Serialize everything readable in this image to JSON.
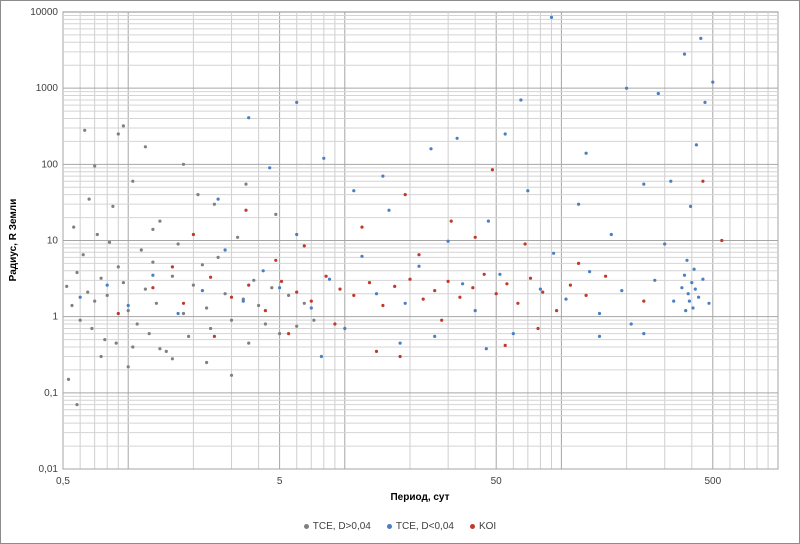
{
  "chart_data": {
    "type": "scatter",
    "xlabel": "Период, сут",
    "ylabel": "Радиус, R Земли",
    "x_scale": "log",
    "y_scale": "log",
    "xlim": [
      0.5,
      1000
    ],
    "ylim": [
      0.01,
      10000
    ],
    "x_ticks": [
      0.5,
      5,
      50,
      500
    ],
    "x_tick_labels": [
      "0,5",
      "5",
      "50",
      "500"
    ],
    "y_ticks": [
      0.01,
      0.1,
      1,
      10,
      100,
      1000,
      10000
    ],
    "y_tick_labels": [
      "0,01",
      "0,1",
      "1",
      "10",
      "100",
      "1000",
      "10000"
    ],
    "grid": true,
    "legend_position": "bottom",
    "series": [
      {
        "name": "TCE, D>0,04",
        "color": "#808080",
        "points": [
          [
            0.52,
            2.5
          ],
          [
            0.55,
            1.4
          ],
          [
            0.58,
            3.8
          ],
          [
            0.6,
            0.9
          ],
          [
            0.62,
            6.5
          ],
          [
            0.65,
            2.1
          ],
          [
            0.68,
            0.7
          ],
          [
            0.7,
            1.6
          ],
          [
            0.72,
            12
          ],
          [
            0.75,
            3.2
          ],
          [
            0.78,
            0.5
          ],
          [
            0.8,
            1.9
          ],
          [
            0.85,
            28
          ],
          [
            0.88,
            0.45
          ],
          [
            0.9,
            4.5
          ],
          [
            0.95,
            2.8
          ],
          [
            1.0,
            1.2
          ],
          [
            1.05,
            60
          ],
          [
            1.1,
            0.8
          ],
          [
            1.15,
            7.5
          ],
          [
            1.2,
            2.3
          ],
          [
            1.25,
            0.6
          ],
          [
            1.3,
            5.2
          ],
          [
            1.35,
            1.5
          ],
          [
            1.4,
            18
          ],
          [
            1.5,
            0.35
          ],
          [
            1.6,
            3.4
          ],
          [
            1.7,
            9.0
          ],
          [
            1.8,
            1.1
          ],
          [
            1.9,
            0.55
          ],
          [
            2.0,
            2.6
          ],
          [
            2.1,
            40
          ],
          [
            2.2,
            4.8
          ],
          [
            2.3,
            1.3
          ],
          [
            2.4,
            0.7
          ],
          [
            2.6,
            6.0
          ],
          [
            2.8,
            2.0
          ],
          [
            3.0,
            0.9
          ],
          [
            3.2,
            11
          ],
          [
            3.4,
            1.7
          ],
          [
            3.6,
            0.45
          ],
          [
            3.8,
            3.0
          ],
          [
            4.0,
            1.4
          ],
          [
            4.3,
            0.8
          ],
          [
            4.6,
            2.4
          ],
          [
            5.0,
            0.6
          ],
          [
            5.5,
            1.9
          ],
          [
            6.0,
            0.75
          ],
          [
            6.5,
            1.5
          ],
          [
            7.2,
            0.9
          ],
          [
            0.53,
            0.15
          ],
          [
            0.58,
            0.07
          ],
          [
            0.63,
            280
          ],
          [
            0.7,
            95
          ],
          [
            0.9,
            250
          ],
          [
            0.95,
            320
          ],
          [
            1.2,
            170
          ],
          [
            0.75,
            0.3
          ],
          [
            1.0,
            0.22
          ],
          [
            1.4,
            0.38
          ],
          [
            1.8,
            100
          ],
          [
            2.3,
            0.25
          ],
          [
            3.0,
            0.17
          ],
          [
            0.56,
            15
          ],
          [
            0.66,
            35
          ],
          [
            0.82,
            9.5
          ],
          [
            1.05,
            0.4
          ],
          [
            1.3,
            14
          ],
          [
            1.6,
            0.28
          ],
          [
            2.5,
            30
          ],
          [
            3.5,
            55
          ],
          [
            4.8,
            22
          ]
        ]
      },
      {
        "name": "TCE, D<0,04",
        "color": "#4a7fc1",
        "points": [
          [
            0.6,
            1.8
          ],
          [
            0.8,
            2.6
          ],
          [
            1.0,
            1.4
          ],
          [
            1.3,
            3.5
          ],
          [
            1.7,
            1.1
          ],
          [
            2.2,
            2.2
          ],
          [
            2.8,
            7.5
          ],
          [
            3.4,
            1.6
          ],
          [
            4.2,
            4.0
          ],
          [
            5.0,
            2.4
          ],
          [
            6.0,
            12
          ],
          [
            7.0,
            1.3
          ],
          [
            8.5,
            3.1
          ],
          [
            10,
            0.7
          ],
          [
            12,
            6.2
          ],
          [
            14,
            2.0
          ],
          [
            16,
            25
          ],
          [
            19,
            1.5
          ],
          [
            22,
            4.6
          ],
          [
            26,
            0.55
          ],
          [
            30,
            9.8
          ],
          [
            35,
            2.7
          ],
          [
            40,
            1.2
          ],
          [
            46,
            18
          ],
          [
            52,
            3.6
          ],
          [
            60,
            0.6
          ],
          [
            70,
            45
          ],
          [
            80,
            2.3
          ],
          [
            92,
            6.8
          ],
          [
            105,
            1.7
          ],
          [
            120,
            30
          ],
          [
            135,
            3.9
          ],
          [
            150,
            1.1
          ],
          [
            170,
            12
          ],
          [
            190,
            2.2
          ],
          [
            210,
            0.8
          ],
          [
            240,
            55
          ],
          [
            270,
            3.0
          ],
          [
            300,
            9.0
          ],
          [
            330,
            1.6
          ],
          [
            360,
            2.4
          ],
          [
            370,
            3.5
          ],
          [
            375,
            1.2
          ],
          [
            380,
            5.5
          ],
          [
            385,
            2.0
          ],
          [
            390,
            1.6
          ],
          [
            395,
            28
          ],
          [
            400,
            2.8
          ],
          [
            405,
            1.3
          ],
          [
            410,
            4.2
          ],
          [
            415,
            2.3
          ],
          [
            420,
            180
          ],
          [
            430,
            1.8
          ],
          [
            440,
            4500
          ],
          [
            450,
            3.1
          ],
          [
            460,
            650
          ],
          [
            480,
            1.5
          ],
          [
            500,
            1200
          ],
          [
            370,
            2800
          ],
          [
            6,
            650
          ],
          [
            3.6,
            410
          ],
          [
            8,
            120
          ],
          [
            15,
            70
          ],
          [
            25,
            160
          ],
          [
            65,
            700
          ],
          [
            90,
            8500
          ],
          [
            200,
            1000
          ],
          [
            280,
            850
          ],
          [
            7.8,
            0.3
          ],
          [
            18,
            0.45
          ],
          [
            45,
            0.38
          ],
          [
            240,
            0.6
          ],
          [
            150,
            0.55
          ],
          [
            55,
            250
          ],
          [
            33,
            220
          ],
          [
            11,
            45
          ],
          [
            4.5,
            90
          ],
          [
            2.6,
            35
          ],
          [
            130,
            140
          ],
          [
            320,
            60
          ]
        ]
      },
      {
        "name": "KOI",
        "color": "#c0392b",
        "points": [
          [
            0.9,
            1.1
          ],
          [
            1.3,
            2.4
          ],
          [
            1.8,
            1.5
          ],
          [
            2.4,
            3.3
          ],
          [
            3.0,
            1.8
          ],
          [
            3.6,
            2.6
          ],
          [
            4.3,
            1.2
          ],
          [
            5.1,
            2.9
          ],
          [
            6.0,
            2.1
          ],
          [
            7.0,
            1.6
          ],
          [
            8.2,
            3.4
          ],
          [
            9.5,
            2.3
          ],
          [
            11,
            1.9
          ],
          [
            13,
            2.8
          ],
          [
            15,
            1.4
          ],
          [
            17,
            2.5
          ],
          [
            20,
            3.1
          ],
          [
            23,
            1.7
          ],
          [
            26,
            2.2
          ],
          [
            30,
            2.9
          ],
          [
            34,
            1.8
          ],
          [
            39,
            2.4
          ],
          [
            44,
            3.6
          ],
          [
            50,
            2.0
          ],
          [
            56,
            2.7
          ],
          [
            63,
            1.5
          ],
          [
            72,
            3.2
          ],
          [
            82,
            2.1
          ],
          [
            95,
            1.2
          ],
          [
            110,
            2.6
          ],
          [
            130,
            1.9
          ],
          [
            160,
            3.4
          ],
          [
            2.0,
            12
          ],
          [
            3.5,
            25
          ],
          [
            6.5,
            8.5
          ],
          [
            12,
            15
          ],
          [
            22,
            6.5
          ],
          [
            40,
            11
          ],
          [
            68,
            9.0
          ],
          [
            5.5,
            0.6
          ],
          [
            14,
            0.35
          ],
          [
            18,
            0.3
          ],
          [
            55,
            0.42
          ],
          [
            2.5,
            0.55
          ],
          [
            9,
            0.8
          ],
          [
            28,
            0.9
          ],
          [
            550,
            10
          ],
          [
            450,
            60
          ],
          [
            1.6,
            4.5
          ],
          [
            4.8,
            5.5
          ],
          [
            19,
            40
          ],
          [
            31,
            18
          ],
          [
            48,
            85
          ],
          [
            120,
            5.0
          ],
          [
            78,
            0.7
          ],
          [
            240,
            1.6
          ]
        ]
      }
    ]
  }
}
